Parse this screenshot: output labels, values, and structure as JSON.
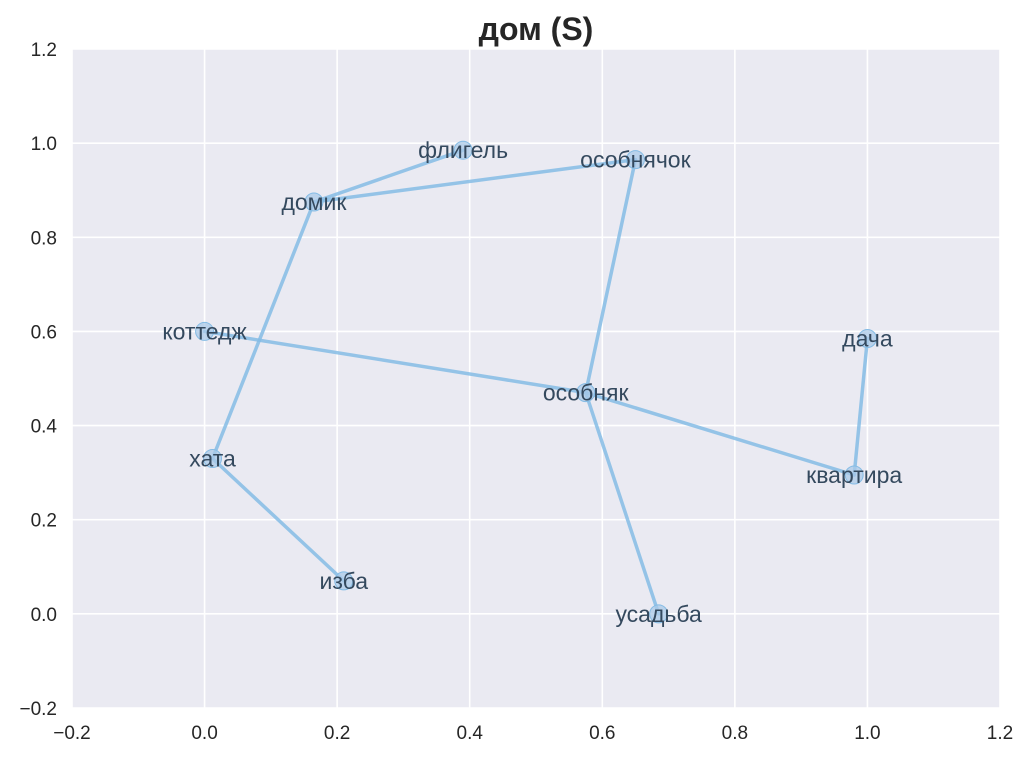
{
  "chart_data": {
    "type": "scatter",
    "title": "дом (S)",
    "xlabel": "",
    "ylabel": "",
    "xlim": [
      -0.2,
      1.2
    ],
    "ylim": [
      -0.2,
      1.2
    ],
    "xticks": [
      "−0.2",
      "0.0",
      "0.2",
      "0.4",
      "0.6",
      "0.8",
      "1.0",
      "1.2"
    ],
    "yticks": [
      "−0.2",
      "0.0",
      "0.2",
      "0.4",
      "0.6",
      "0.8",
      "1.0",
      "1.2"
    ],
    "grid": true,
    "background": "#eaeaf2",
    "line_color": "#85bce5",
    "marker_color": "#a9c9e8",
    "label_color": "#34495e",
    "points": [
      {
        "label": "флигель",
        "x": 0.39,
        "y": 0.985
      },
      {
        "label": "особнячок",
        "x": 0.65,
        "y": 0.965
      },
      {
        "label": "домик",
        "x": 0.165,
        "y": 0.875
      },
      {
        "label": "коттедж",
        "x": 0.0,
        "y": 0.6
      },
      {
        "label": "дача",
        "x": 1.0,
        "y": 0.585
      },
      {
        "label": "особняк",
        "x": 0.575,
        "y": 0.47
      },
      {
        "label": "хата",
        "x": 0.012,
        "y": 0.33
      },
      {
        "label": "квартира",
        "x": 0.98,
        "y": 0.295
      },
      {
        "label": "изба",
        "x": 0.21,
        "y": 0.07
      },
      {
        "label": "усадьба",
        "x": 0.685,
        "y": 0.0
      }
    ],
    "edges": [
      [
        "домик",
        "флигель"
      ],
      [
        "домик",
        "особнячок"
      ],
      [
        "домик",
        "хата"
      ],
      [
        "хата",
        "изба"
      ],
      [
        "особнячок",
        "особняк"
      ],
      [
        "коттедж",
        "особняк"
      ],
      [
        "особняк",
        "квартира"
      ],
      [
        "особняк",
        "усадьба"
      ],
      [
        "квартира",
        "дача"
      ]
    ]
  }
}
